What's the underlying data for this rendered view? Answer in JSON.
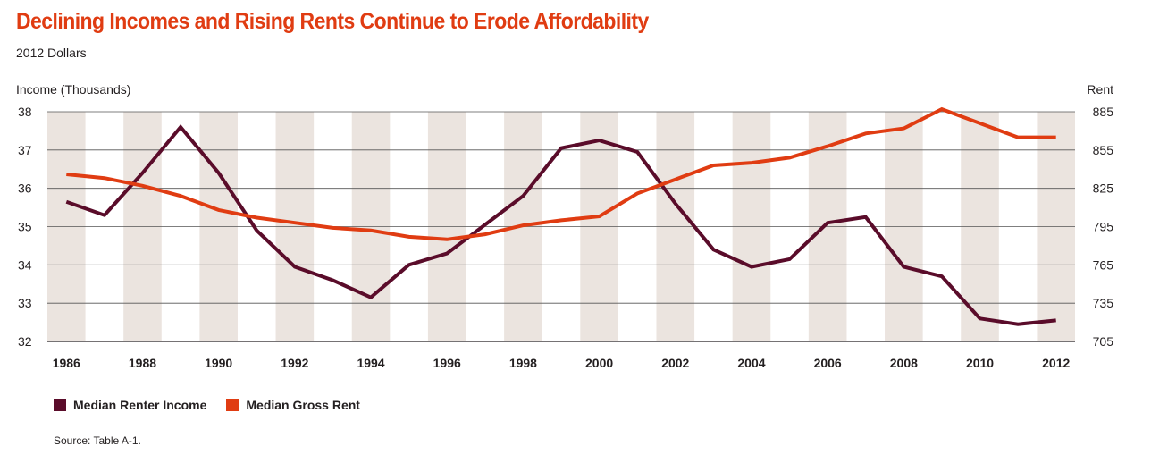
{
  "chart_data": {
    "type": "line",
    "title": "Declining Incomes and Rising Rents Continue to Erode Affordability",
    "subtitle": "2012 Dollars",
    "ylabel_left": "Income (Thousands)",
    "ylabel_right": "Rent",
    "x": [
      1986,
      1987,
      1988,
      1989,
      1990,
      1991,
      1992,
      1993,
      1994,
      1995,
      1996,
      1997,
      1998,
      1999,
      2000,
      2001,
      2002,
      2003,
      2004,
      2005,
      2006,
      2007,
      2008,
      2009,
      2010,
      2011,
      2012
    ],
    "x_tick_labels": [
      "1986",
      "1988",
      "1990",
      "1992",
      "1994",
      "1996",
      "1998",
      "2000",
      "2002",
      "2004",
      "2006",
      "2008",
      "2010",
      "2012"
    ],
    "ylim_left": [
      32,
      38
    ],
    "yticks_left": [
      "32",
      "33",
      "34",
      "35",
      "36",
      "37",
      "38"
    ],
    "ylim_right": [
      705,
      885
    ],
    "yticks_right": [
      "705",
      "735",
      "765",
      "795",
      "825",
      "855",
      "885"
    ],
    "series": [
      {
        "name": "Median Renter Income",
        "axis": "left",
        "color": "#5a0c2a",
        "values": [
          35.65,
          35.3,
          36.4,
          37.6,
          36.4,
          34.9,
          33.95,
          33.6,
          33.15,
          34.0,
          34.3,
          35.05,
          35.8,
          37.05,
          37.25,
          36.95,
          35.6,
          34.4,
          33.95,
          34.15,
          35.1,
          35.25,
          33.95,
          33.7,
          32.6,
          32.45,
          32.55
        ]
      },
      {
        "name": "Median Gross Rent",
        "axis": "right",
        "color": "#e03c12",
        "values": [
          836,
          833,
          827,
          819,
          808,
          802,
          798,
          794,
          792,
          787,
          785,
          789,
          796,
          800,
          803,
          821,
          832,
          843,
          845,
          849,
          858,
          868,
          872,
          887,
          876,
          865,
          865
        ]
      }
    ],
    "grid": "horizontal",
    "bands": "alternating vertical shading per year",
    "legend": "bottom-left"
  },
  "source": "Source: Table A-1.",
  "colors": {
    "title": "#e03c12",
    "band": "#ebe4df"
  }
}
